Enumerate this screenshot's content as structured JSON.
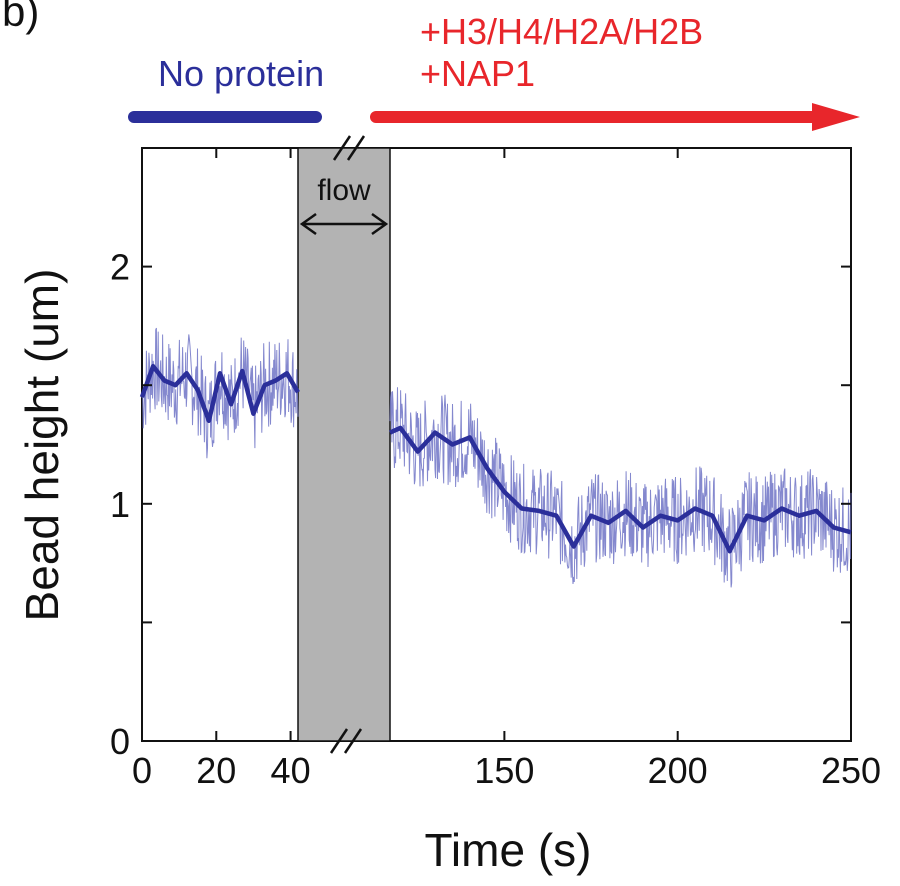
{
  "panel_label": "b)",
  "annotations": {
    "no_protein": "No protein",
    "protein_line1": "+H3/H4/H2A/H2B",
    "protein_line2": "+NAP1",
    "flow": "flow"
  },
  "colors": {
    "no_protein": "#2b2f9a",
    "protein": "#e8262b",
    "trace_raw": "#6f73c6",
    "trace_smooth": "#2b2f9a",
    "flow_band": "#b3b3b3"
  },
  "chart_data": {
    "type": "line",
    "xlabel": "Time (s)",
    "ylabel": "Bead height (um)",
    "ylim": [
      0,
      2.5
    ],
    "y_ticks": [
      0,
      0.5,
      1,
      1.5,
      2,
      2.5
    ],
    "y_tick_labels": [
      "0",
      "",
      "1",
      "",
      "2",
      ""
    ],
    "x_axis_broken": true,
    "x_segments": [
      {
        "xlim": [
          0,
          42
        ],
        "ticks": [
          0,
          20,
          40
        ],
        "tick_labels": [
          "0",
          "20",
          "40"
        ]
      },
      {
        "xlim": [
          117,
          250
        ],
        "ticks": [
          150,
          200,
          250
        ],
        "tick_labels": [
          "150",
          "200",
          "250"
        ]
      }
    ],
    "flow_band": {
      "label": "flow"
    },
    "grid": false,
    "legend": "none",
    "series": [
      {
        "segment": 0,
        "x": [
          0,
          3,
          6,
          9,
          12,
          15,
          18,
          21,
          24,
          27,
          30,
          33,
          36,
          39,
          42
        ],
        "y": [
          1.45,
          1.58,
          1.52,
          1.5,
          1.55,
          1.48,
          1.35,
          1.55,
          1.42,
          1.56,
          1.38,
          1.5,
          1.52,
          1.55,
          1.47
        ]
      },
      {
        "segment": 1,
        "x": [
          117,
          120,
          125,
          130,
          135,
          140,
          145,
          150,
          155,
          160,
          165,
          170,
          175,
          180,
          185,
          190,
          195,
          200,
          205,
          210,
          215,
          220,
          225,
          230,
          235,
          240,
          245,
          250
        ],
        "y": [
          1.3,
          1.32,
          1.22,
          1.3,
          1.25,
          1.28,
          1.15,
          1.05,
          0.98,
          0.97,
          0.95,
          0.82,
          0.95,
          0.92,
          0.97,
          0.9,
          0.95,
          0.93,
          0.98,
          0.95,
          0.8,
          0.95,
          0.93,
          0.98,
          0.95,
          0.97,
          0.9,
          0.88
        ]
      }
    ]
  }
}
